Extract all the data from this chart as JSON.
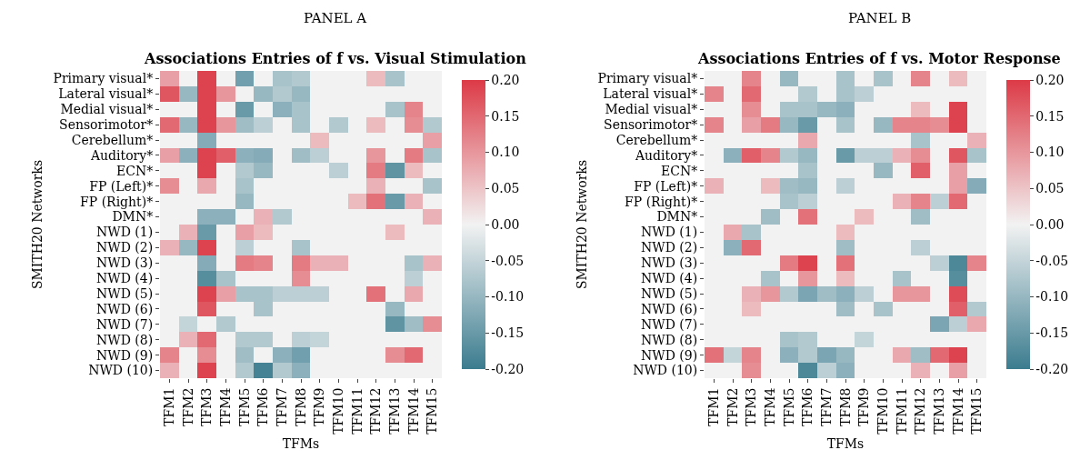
{
  "chart_data": [
    {
      "type": "heatmap",
      "title": "PANEL A",
      "subtitle": "Associations Entries of f vs. Visual Stimulation",
      "xlabel": "TFMs",
      "ylabel": "SMITH20 Networks",
      "categories": [
        "TFM1",
        "TFM2",
        "TFM3",
        "TFM4",
        "TFM5",
        "TFM6",
        "TFM7",
        "TFM8",
        "TFM9",
        "TFM10",
        "TFM11",
        "TFM12",
        "TFM13",
        "TFM14",
        "TFM15"
      ],
      "y_categories": [
        "Primary visual*",
        "Lateral visual*",
        "Medial visual*",
        "Sensorimotor*",
        "Cerebellum*",
        "Auditory*",
        "ECN*",
        "FP (Left)*",
        "FP (Right)*",
        "DMN*",
        "NWD (1)",
        "NWD (2)",
        "NWD (3)",
        "NWD (4)",
        "NWD (5)",
        "NWD (6)",
        "NWD (7)",
        "NWD (8)",
        "NWD (9)",
        "NWD (10)"
      ],
      "cells": [
        [
          0.09,
          0,
          0.19,
          0,
          -0.14,
          0,
          -0.08,
          -0.07,
          0,
          0,
          0,
          0.06,
          -0.08,
          0,
          0
        ],
        [
          0.17,
          -0.1,
          0.19,
          0.1,
          0,
          -0.1,
          -0.07,
          -0.1,
          0,
          0,
          0,
          0,
          0,
          0,
          0
        ],
        [
          0,
          0,
          0.19,
          0,
          -0.15,
          0,
          -0.11,
          -0.08,
          0,
          0,
          0,
          0,
          -0.08,
          0.12,
          0
        ],
        [
          0.15,
          -0.1,
          0.19,
          0.1,
          -0.09,
          -0.06,
          0,
          -0.08,
          0,
          -0.07,
          0,
          0.06,
          0,
          0.11,
          -0.07
        ],
        [
          0,
          0,
          -0.12,
          0,
          0,
          0,
          0,
          0,
          0.06,
          0,
          0,
          0,
          0,
          0,
          0.09
        ],
        [
          0.09,
          -0.11,
          0.19,
          0.16,
          -0.11,
          -0.12,
          0,
          -0.09,
          -0.06,
          0,
          0,
          0.1,
          0,
          0.13,
          -0.08
        ],
        [
          0,
          0,
          0.19,
          0,
          -0.07,
          -0.1,
          0,
          0,
          0,
          -0.06,
          0,
          0.13,
          -0.16,
          0.06,
          0
        ],
        [
          0.11,
          0,
          0.08,
          0,
          -0.08,
          0,
          0,
          0,
          0,
          0,
          0,
          0.07,
          0,
          0,
          -0.08
        ],
        [
          0,
          0,
          0,
          0,
          -0.1,
          0,
          0,
          0,
          0,
          0,
          0.06,
          0.14,
          -0.15,
          0.07,
          0
        ],
        [
          0,
          0,
          -0.11,
          -0.11,
          0,
          0.07,
          -0.07,
          0,
          0,
          0,
          0,
          0,
          0,
          0,
          0.07
        ],
        [
          0,
          0.07,
          -0.15,
          0,
          0.09,
          0.06,
          0,
          0,
          0,
          0,
          0,
          0,
          0.06,
          0,
          0
        ],
        [
          0.07,
          -0.1,
          0.19,
          0,
          -0.06,
          0,
          0,
          -0.08,
          0,
          0,
          0,
          0,
          0,
          0,
          0
        ],
        [
          0,
          0,
          -0.12,
          0,
          0.13,
          0.12,
          0,
          0.13,
          0.07,
          0.07,
          0,
          0,
          0,
          -0.08,
          0.07
        ],
        [
          0,
          0,
          -0.17,
          -0.08,
          0,
          0,
          0,
          0.11,
          0,
          0,
          0,
          0,
          0,
          -0.06,
          0
        ],
        [
          0,
          0,
          0.19,
          0.09,
          -0.08,
          -0.08,
          -0.06,
          -0.06,
          -0.06,
          0,
          0,
          0.14,
          0,
          0.08,
          0
        ],
        [
          0,
          0,
          0.17,
          0,
          0,
          -0.08,
          0,
          0,
          0,
          0,
          0,
          0,
          -0.1,
          0,
          0
        ],
        [
          0,
          -0.05,
          0,
          -0.07,
          0,
          0,
          0,
          0,
          0,
          0,
          0,
          0,
          -0.16,
          -0.09,
          0.11
        ],
        [
          0,
          0.07,
          0.15,
          0,
          -0.07,
          -0.07,
          0,
          -0.06,
          -0.05,
          0,
          0,
          0,
          0,
          0,
          0
        ],
        [
          0.12,
          0,
          0.11,
          0,
          -0.09,
          0,
          -0.11,
          -0.14,
          0,
          0,
          0,
          0,
          0.11,
          0.15,
          0
        ],
        [
          0.07,
          0,
          0.19,
          0,
          -0.07,
          -0.19,
          -0.07,
          -0.11,
          0,
          0,
          0,
          0,
          0,
          0,
          0
        ]
      ],
      "colors": [
        "#3b7c8f",
        "#f2f2f2",
        "#dc3a46"
      ],
      "clim": [
        -0.2,
        0.2
      ],
      "cticks": [
        {
          "value": -0.2,
          "label": "-0.20"
        },
        {
          "value": -0.15,
          "label": "-0.15"
        },
        {
          "value": -0.1,
          "label": "-0.10"
        },
        {
          "value": -0.05,
          "label": "-0.05"
        },
        {
          "value": 0,
          "label": "0.00"
        },
        {
          "value": 0.05,
          "label": "0.05"
        },
        {
          "value": 0.1,
          "label": "0.10"
        },
        {
          "value": 0.15,
          "label": "0.15"
        },
        {
          "value": 0.2,
          "label": "0.20"
        }
      ]
    },
    {
      "type": "heatmap",
      "title": "PANEL B",
      "subtitle": "Associations Entries of f vs. Motor Response",
      "xlabel": "TFMs",
      "ylabel": "SMITH20 Networks",
      "categories": [
        "TFM1",
        "TFM2",
        "TFM3",
        "TFM4",
        "TFM5",
        "TFM6",
        "TFM7",
        "TFM8",
        "TFM9",
        "TFM10",
        "TFM11",
        "TFM12",
        "TFM13",
        "TFM14",
        "TFM15"
      ],
      "y_categories": [
        "Primary visual*",
        "Lateral visual*",
        "Medial visual*",
        "Sensorimotor*",
        "Cerebellum*",
        "Auditory*",
        "ECN*",
        "FP (Left)*",
        "FP (Right)*",
        "DMN*",
        "NWD (1)",
        "NWD (2)",
        "NWD (3)",
        "NWD (4)",
        "NWD (5)",
        "NWD (6)",
        "NWD (7)",
        "NWD (8)",
        "NWD (9)",
        "NWD (10)"
      ],
      "cells": [
        [
          0,
          0,
          0.12,
          0,
          -0.1,
          0,
          0,
          -0.08,
          0,
          -0.08,
          0,
          0.12,
          0,
          0.06,
          0
        ],
        [
          0.12,
          0,
          0.15,
          0,
          0,
          -0.07,
          0,
          -0.08,
          -0.06,
          0,
          0,
          0,
          0,
          0,
          0
        ],
        [
          0,
          0,
          0.11,
          0,
          -0.08,
          -0.08,
          -0.1,
          -0.11,
          0,
          0,
          0,
          0.06,
          0,
          0.19,
          0
        ],
        [
          0.12,
          0,
          0.09,
          0.13,
          -0.1,
          -0.15,
          0,
          -0.08,
          0,
          -0.1,
          0.12,
          0.12,
          0.11,
          0.19,
          0
        ],
        [
          0,
          0,
          0,
          0,
          0,
          0.08,
          0,
          0,
          0,
          0,
          0,
          -0.08,
          0,
          0,
          0.07
        ],
        [
          0,
          -0.11,
          0.16,
          0.12,
          -0.07,
          -0.1,
          0,
          -0.15,
          -0.06,
          -0.06,
          0.07,
          0.11,
          0,
          0.17,
          -0.08
        ],
        [
          0,
          0,
          0,
          0,
          0,
          -0.08,
          0,
          0,
          0,
          -0.1,
          0,
          0.16,
          0,
          0.09,
          0
        ],
        [
          0.07,
          0,
          0,
          0.06,
          -0.09,
          -0.1,
          0,
          -0.06,
          0,
          0,
          0,
          0,
          0,
          0.09,
          -0.12
        ],
        [
          0,
          0,
          0,
          0,
          -0.08,
          -0.06,
          0,
          0,
          0,
          0,
          0.07,
          0.12,
          -0.06,
          0.15,
          0
        ],
        [
          0,
          0,
          0,
          -0.09,
          0,
          0.14,
          0,
          0,
          0.06,
          0,
          0,
          -0.09,
          0,
          0,
          0
        ],
        [
          0,
          0.08,
          -0.08,
          0,
          0,
          0,
          0,
          0.06,
          0,
          0,
          0,
          0,
          0,
          0,
          0
        ],
        [
          0,
          -0.11,
          0.15,
          0,
          0,
          0,
          0,
          -0.09,
          0,
          0,
          0,
          -0.06,
          0,
          0,
          0
        ],
        [
          0,
          0,
          0,
          0,
          0.13,
          0.19,
          0,
          0.14,
          0,
          0,
          0,
          0,
          -0.06,
          -0.18,
          0.12
        ],
        [
          0,
          0,
          0,
          -0.08,
          0,
          0.1,
          0,
          0.06,
          0,
          0,
          -0.08,
          0,
          0,
          -0.17,
          0
        ],
        [
          0,
          0,
          0.07,
          0.1,
          -0.07,
          -0.13,
          -0.09,
          -0.11,
          -0.06,
          0,
          0.1,
          0.1,
          0,
          0.18,
          0
        ],
        [
          0,
          0,
          0.06,
          0,
          0,
          0,
          0,
          -0.09,
          0,
          -0.08,
          0,
          0,
          0,
          0.16,
          -0.07
        ],
        [
          0,
          0,
          0,
          0,
          0,
          0,
          0,
          0,
          0,
          0,
          0,
          0,
          -0.13,
          -0.06,
          0.08
        ],
        [
          0,
          0,
          0,
          0,
          -0.08,
          -0.07,
          0,
          0,
          -0.05,
          0,
          0,
          0,
          0,
          0,
          0
        ],
        [
          0.14,
          -0.05,
          0.12,
          0,
          -0.11,
          -0.07,
          -0.13,
          -0.1,
          0,
          0,
          0.08,
          -0.09,
          0.15,
          0.19,
          0
        ],
        [
          0,
          0,
          0.11,
          0,
          0,
          -0.18,
          -0.06,
          -0.11,
          0,
          0,
          0,
          0.07,
          0,
          0.09,
          0
        ]
      ],
      "colors": [
        "#3b7c8f",
        "#f2f2f2",
        "#dc3a46"
      ],
      "clim": [
        -0.2,
        0.2
      ],
      "cticks": [
        {
          "value": -0.2,
          "label": "-0.20"
        },
        {
          "value": -0.15,
          "label": "-0.15"
        },
        {
          "value": -0.1,
          "label": "-0.10"
        },
        {
          "value": -0.05,
          "label": "-0.05"
        },
        {
          "value": 0,
          "label": "0.00"
        },
        {
          "value": 0.05,
          "label": "0.05"
        },
        {
          "value": 0.1,
          "label": "0.10"
        },
        {
          "value": 0.15,
          "label": "0.15"
        },
        {
          "value": 0.2,
          "label": "0.20"
        }
      ]
    }
  ]
}
